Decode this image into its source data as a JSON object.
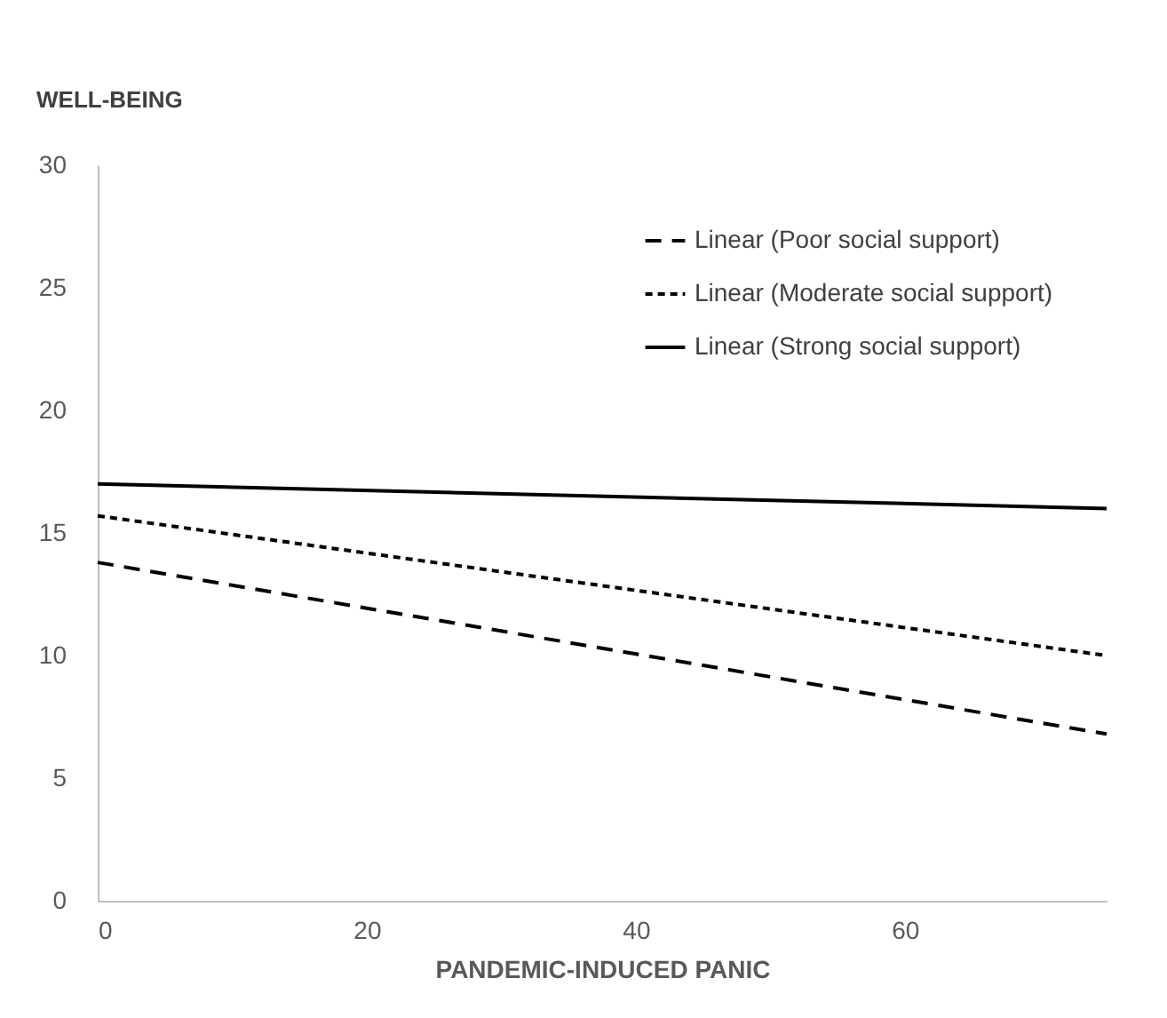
{
  "chart_data": {
    "type": "line",
    "xlabel": "PANDEMIC-INDUCED PANIC",
    "ylabel": "WELL-BEING",
    "x": [
      0,
      75
    ],
    "series": [
      {
        "name": "Linear (Poor social support)",
        "color": "#000000",
        "values": [
          13.8,
          6.8
        ],
        "line_style": "dashed"
      },
      {
        "name": "Linear (Moderate social support)",
        "color": "#000000",
        "values": [
          15.7,
          10.0
        ],
        "line_style": "dotted"
      },
      {
        "name": "Linear (Strong social support)",
        "color": "#000000",
        "values": [
          17.0,
          16.0
        ],
        "line_style": "solid"
      }
    ],
    "xlim": [
      0,
      75
    ],
    "xticks": [
      0,
      20,
      40,
      60
    ],
    "ylim": [
      0,
      30
    ],
    "yticks": [
      0,
      5,
      10,
      15,
      20,
      25,
      30
    ],
    "grid": false,
    "legend": "top right",
    "marker": "none"
  }
}
